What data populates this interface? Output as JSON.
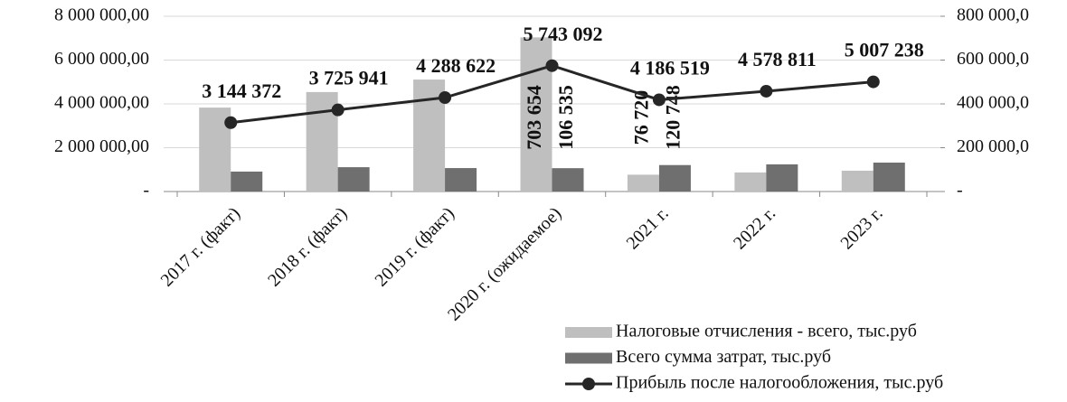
{
  "chart_data": {
    "type": "bar-line",
    "categories": [
      "2017 г. (факт)",
      "2018 г.  (факт)",
      "2019 г. (факт)",
      "2020 г. (ожидаемое)",
      "2021 г.",
      "2022 г.",
      "2023 г."
    ],
    "series": [
      {
        "name": "Налоговые отчисления - всего, тыс.руб",
        "type": "bar",
        "axis": "y2",
        "color": "#bfbfbf",
        "values": [
          383000,
          454000,
          511000,
          703654,
          76720,
          87000,
          95000
        ],
        "value_labels": [
          null,
          null,
          null,
          "703 654",
          "76 720",
          null,
          null
        ]
      },
      {
        "name": "Всего сумма затрат, тыс.руб",
        "type": "bar",
        "axis": "y2",
        "color": "#6f6f6f",
        "values": [
          91000,
          111000,
          107000,
          106535,
          120748,
          124000,
          132000
        ],
        "value_labels": [
          null,
          null,
          null,
          "106 535",
          "120 748",
          null,
          null
        ]
      },
      {
        "name": "Прибыль после налогообложения, тыс.руб",
        "type": "line",
        "axis": "y",
        "color": "#262626",
        "values": [
          3144372,
          3725941,
          4288622,
          5743092,
          4186519,
          4578811,
          5007238
        ],
        "value_labels": [
          "3 144 372",
          "3 725 941",
          "4 288 622",
          "5 743 092",
          "4 186 519",
          "4 578 811",
          "5 007 238"
        ]
      }
    ],
    "ylim": [
      0,
      8000000
    ],
    "yticks": [
      {
        "value": 0,
        "label": "-"
      },
      {
        "value": 2000000,
        "label": "2 000 000,00"
      },
      {
        "value": 4000000,
        "label": "4 000 000,00"
      },
      {
        "value": 6000000,
        "label": "6 000 000,00"
      },
      {
        "value": 8000000,
        "label": "8 000 000,00"
      }
    ],
    "y2lim": [
      0,
      800000
    ],
    "y2ticks": [
      {
        "value": 0,
        "label": "-"
      },
      {
        "value": 200000,
        "label": "200 000,0"
      },
      {
        "value": 400000,
        "label": "400 000,0"
      },
      {
        "value": 600000,
        "label": "600 000,0"
      },
      {
        "value": 800000,
        "label": "800 000,0"
      }
    ],
    "grid": true,
    "legend": "bottom-right"
  }
}
